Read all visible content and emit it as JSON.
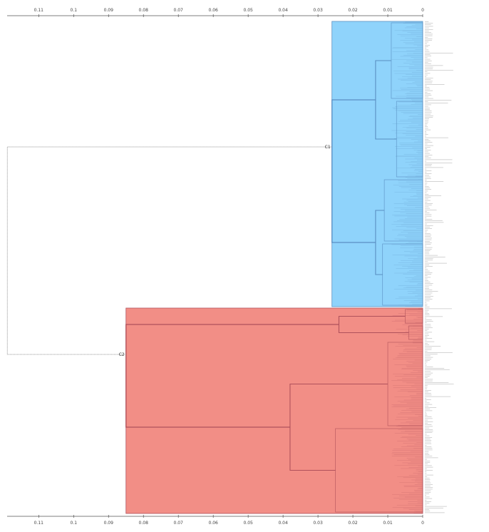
{
  "axis": {
    "reversed": true,
    "range": [
      0.12,
      0
    ],
    "ticks": [
      0.11,
      0.1,
      0.09,
      0.08,
      0.07,
      0.06,
      0.05,
      0.04,
      0.03,
      0.02,
      0.01,
      0
    ]
  },
  "tree": {
    "root_height": 0.119,
    "clusters": [
      {
        "label": "C1",
        "height": 0.026,
        "fill": "#8fd3fb",
        "stroke": "#5a8fc2",
        "subclusters": [
          {
            "height": 0.0135,
            "subclusters": [
              {
                "height": 0.009
              },
              {
                "height": 0.0075
              }
            ]
          },
          {
            "height": 0.0135,
            "subclusters": [
              {
                "height": 0.011
              },
              {
                "height": 0.0115
              }
            ]
          }
        ]
      },
      {
        "label": "C2",
        "height": 0.085,
        "fill": "#f28e86",
        "stroke": "#b0525c",
        "subclusters": [
          {
            "height": 0.024,
            "subclusters": [
              {
                "height": 0.005
              },
              {
                "height": 0.004
              }
            ]
          },
          {
            "height": 0.038,
            "subclusters": [
              {
                "height": 0.01
              },
              {
                "height": 0.025
              }
            ]
          }
        ]
      }
    ]
  },
  "colors": {
    "root_line": "#888888",
    "axis_line": "#555555",
    "leaf_text": "#9a9a9a"
  }
}
